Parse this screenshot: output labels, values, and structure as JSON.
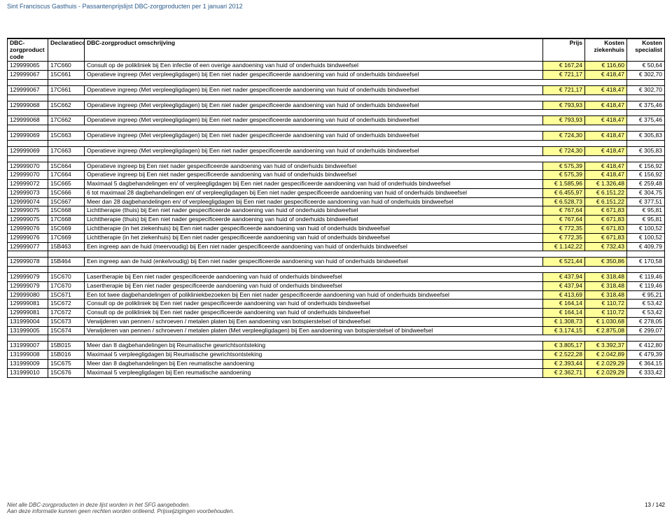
{
  "header": {
    "title": "Sint Franciscus Gasthuis - Passantenprijslijst DBC-zorgproducten per 1 januari 2012"
  },
  "table": {
    "columns": [
      {
        "key": "code",
        "label": "DBC-zorgproduct code"
      },
      {
        "key": "decl",
        "label": "Declaratiecode"
      },
      {
        "key": "desc",
        "label": "DBC-zorgproduct omschrijving"
      },
      {
        "key": "prijs",
        "label": "Prijs"
      },
      {
        "key": "kz",
        "label": "Kosten ziekenhuis"
      },
      {
        "key": "ks",
        "label": "Kosten specialist"
      }
    ]
  },
  "groups": [
    {
      "rows": [
        {
          "code": "129999065",
          "decl": "17C660",
          "desc": "Consult op de polikliniek bij Een infectie of een overige aandoening van huid of onderhuids bindweefsel",
          "p": "€ 167,24",
          "k1": "€ 116,60",
          "k2": "€ 50,64"
        },
        {
          "code": "129999067",
          "decl": "15C661",
          "desc": "Operatieve ingreep (Met verpleegligdagen) bij Een niet nader gespecificeerde aandoening van huid of onderhuids bindweefsel",
          "p": "€ 721,17",
          "k1": "€ 418,47",
          "k2": "€ 302,70"
        }
      ]
    },
    {
      "rows": [
        {
          "code": "129999067",
          "decl": "17C661",
          "desc": "Operatieve ingreep (Met verpleegligdagen) bij Een niet nader gespecificeerde aandoening van huid of onderhuids bindweefsel",
          "p": "€ 721,17",
          "k1": "€ 418,47",
          "k2": "€ 302,70"
        }
      ]
    },
    {
      "rows": [
        {
          "code": "129999068",
          "decl": "15C662",
          "desc": "Operatieve ingreep (Met verpleegligdagen) bij Een niet nader gespecificeerde aandoening van huid of onderhuids bindweefsel",
          "p": "€ 793,93",
          "k1": "€ 418,47",
          "k2": "€ 375,46"
        }
      ]
    },
    {
      "rows": [
        {
          "code": "129999068",
          "decl": "17C662",
          "desc": "Operatieve ingreep (Met verpleegligdagen) bij Een niet nader gespecificeerde aandoening van huid of onderhuids bindweefsel",
          "p": "€ 793,93",
          "k1": "€ 418,47",
          "k2": "€ 375,46"
        }
      ]
    },
    {
      "rows": [
        {
          "code": "129999069",
          "decl": "15C663",
          "desc": "Operatieve ingreep (Met verpleegligdagen) bij Een niet nader gespecificeerde aandoening van huid of onderhuids bindweefsel",
          "p": "€ 724,30",
          "k1": "€ 418,47",
          "k2": "€ 305,83"
        }
      ]
    },
    {
      "rows": [
        {
          "code": "129999069",
          "decl": "17C663",
          "desc": "Operatieve ingreep (Met verpleegligdagen) bij Een niet nader gespecificeerde aandoening van huid of onderhuids bindweefsel",
          "p": "€ 724,30",
          "k1": "€ 418,47",
          "k2": "€ 305,83"
        }
      ]
    },
    {
      "rows": [
        {
          "code": "129999070",
          "decl": "15C664",
          "desc": "Operatieve ingreep bij Een niet nader gespecificeerde aandoening van huid of onderhuids bindweefsel",
          "p": "€ 575,39",
          "k1": "€ 418,47",
          "k2": "€ 156,92"
        },
        {
          "code": "129999070",
          "decl": "17C664",
          "desc": "Operatieve ingreep bij Een niet nader gespecificeerde aandoening van huid of onderhuids bindweefsel",
          "p": "€ 575,39",
          "k1": "€ 418,47",
          "k2": "€ 156,92"
        },
        {
          "code": "129999072",
          "decl": "15C665",
          "desc": "Maximaal 5 dagbehandelingen en/ of verpleegligdagen bij Een niet nader gespecificeerde aandoening van huid of onderhuids bindweefsel",
          "p": "€ 1.585,96",
          "k1": "€ 1.326,48",
          "k2": "€ 259,48"
        },
        {
          "code": "129999073",
          "decl": "15C666",
          "desc": "6 tot maximaal 28 dagbehandelingen en/ of verpleegligdagen bij Een niet nader gespecificeerde aandoening van huid of onderhuids bindweefsel",
          "p": "€ 6.455,97",
          "k1": "€ 6.151,22",
          "k2": "€ 304,75"
        },
        {
          "code": "129999074",
          "decl": "15C667",
          "desc": "Meer dan 28 dagbehandelingen en/ of verpleegligdagen bij Een niet nader gespecificeerde aandoening van huid of onderhuids bindweefsel",
          "p": "€ 6.528,73",
          "k1": "€ 6.151,22",
          "k2": "€ 377,51"
        },
        {
          "code": "129999075",
          "decl": "15C668",
          "desc": "Lichttherapie (thuis) bij Een niet nader gespecificeerde aandoening van huid of onderhuids bindweefsel",
          "p": "€ 767,64",
          "k1": "€ 671,83",
          "k2": "€ 95,81"
        },
        {
          "code": "129999075",
          "decl": "17C668",
          "desc": "Lichttherapie (thuis) bij Een niet nader gespecificeerde aandoening van huid of onderhuids bindweefsel",
          "p": "€ 767,64",
          "k1": "€ 671,83",
          "k2": "€ 95,81"
        },
        {
          "code": "129999076",
          "decl": "15C669",
          "desc": "Lichttherapie (in het ziekenhuis) bij Een niet nader gespecificeerde aandoening van huid of onderhuids bindweefsel",
          "p": "€ 772,35",
          "k1": "€ 671,83",
          "k2": "€ 100,52"
        },
        {
          "code": "129999076",
          "decl": "17C669",
          "desc": "Lichttherapie (in het ziekenhuis) bij Een niet nader gespecificeerde aandoening van huid of onderhuids bindweefsel",
          "p": "€ 772,35",
          "k1": "€ 671,83",
          "k2": "€ 100,52"
        },
        {
          "code": "129999077",
          "decl": "15B463",
          "desc": "Een ingreep aan de huid (meervoudig) bij Een niet nader gespecificeerde aandoening van huid of onderhuids bindweefsel",
          "p": "€ 1.142,22",
          "k1": "€ 732,43",
          "k2": "€ 409,79"
        }
      ]
    },
    {
      "rows": [
        {
          "code": "129999078",
          "decl": "15B464",
          "desc": "Een ingreep aan de huid (enkelvoudig) bij Een niet nader gespecificeerde aandoening van huid of onderhuids bindweefsel",
          "p": "€ 521,44",
          "k1": "€ 350,86",
          "k2": "€ 170,58"
        }
      ]
    },
    {
      "rows": [
        {
          "code": "129999079",
          "decl": "15C670",
          "desc": "Lasertherapie bij Een niet nader gespecificeerde aandoening van huid of onderhuids bindweefsel",
          "p": "€ 437,94",
          "k1": "€ 318,48",
          "k2": "€ 119,46"
        },
        {
          "code": "129999079",
          "decl": "17C670",
          "desc": "Lasertherapie bij Een niet nader gespecificeerde aandoening van huid of onderhuids bindweefsel",
          "p": "€ 437,94",
          "k1": "€ 318,48",
          "k2": "€ 119,46"
        },
        {
          "code": "129999080",
          "decl": "15C671",
          "desc": "Een tot twee dagbehandelingen of polikliniekbezoeken bij Een niet nader gespecificeerde aandoening van huid of onderhuids bindweefsel",
          "p": "€ 413,69",
          "k1": "€ 318,48",
          "k2": "€ 95,21"
        },
        {
          "code": "129999081",
          "decl": "15C672",
          "desc": "Consult op de polikliniek bij Een niet nader gespecificeerde aandoening van huid of onderhuids bindweefsel",
          "p": "€ 164,14",
          "k1": "€ 110,72",
          "k2": "€ 53,42"
        },
        {
          "code": "129999081",
          "decl": "17C672",
          "desc": "Consult op de polikliniek bij Een niet nader gespecificeerde aandoening van huid of onderhuids bindweefsel",
          "p": "€ 164,14",
          "k1": "€ 110,72",
          "k2": "€ 53,42"
        },
        {
          "code": "131999004",
          "decl": "15C673",
          "desc": "Verwijderen van pennen / schroeven / metalen platen bij Een aandoening van botspierstelsel of bindweefsel",
          "p": "€ 1.308,73",
          "k1": "€ 1.030,68",
          "k2": "€ 278,05"
        },
        {
          "code": "131999005",
          "decl": "15C674",
          "desc": "Verwijderen van pennen / schroeven / metalen platen (Met verpleegligdagen) bij Een aandoening van botspierstelsel of bindweefsel",
          "p": "€ 3.174,15",
          "k1": "€ 2.875,08",
          "k2": "€ 299,07"
        }
      ]
    },
    {
      "rows": [
        {
          "code": "131999007",
          "decl": "15B015",
          "desc": "Meer dan 8 dagbehandelingen bij Reumatische gewrichtsontsteking",
          "p": "€ 3.805,17",
          "k1": "€ 3.392,37",
          "k2": "€ 412,80"
        },
        {
          "code": "131999008",
          "decl": "15B016",
          "desc": "Maximaal 5 verpleegligdagen bij Reumatische gewrichtsontsteking",
          "p": "€ 2.522,28",
          "k1": "€ 2.042,89",
          "k2": "€ 479,39"
        },
        {
          "code": "131999009",
          "decl": "15C675",
          "desc": "Meer dan 8 dagbehandelingen bij Een reumatische aandoening",
          "p": "€ 2.393,44",
          "k1": "€ 2.029,29",
          "k2": "€ 364,15"
        },
        {
          "code": "131999010",
          "decl": "15C676",
          "desc": "Maximaal 5 verpleegligdagen bij Een reumatische aandoening",
          "p": "€ 2.362,71",
          "k1": "€ 2.029,29",
          "k2": "€ 333,42"
        }
      ]
    }
  ],
  "footer": {
    "line1": "Niet alle DBC-zorgproducten in deze lijst worden in het SFG aangeboden.",
    "line2": "Aan deze informatie kunnen geen rechten worden ontleend. Prijswijzigingen voorbehouden.",
    "page": "13 / 142"
  },
  "style": {
    "highlight_bg": "#ffff99",
    "header_color": "#2a5a8a"
  }
}
